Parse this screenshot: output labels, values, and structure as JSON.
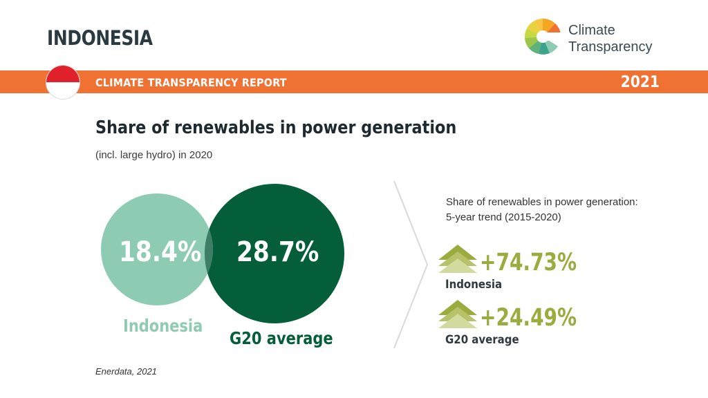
{
  "header": {
    "country": "INDONESIA",
    "logo_text_line1": "Climate",
    "logo_text_line2": "Transparency",
    "logo_icon": "climate-transparency-logo-icon",
    "flag_icon": "indonesia-flag-icon"
  },
  "banner": {
    "title": "CLIMATE TRANSPARENCY REPORT",
    "year": "2021",
    "color": "#f07233"
  },
  "chart": {
    "title": "Share of renewables in power generation",
    "subtitle": "(incl. large hydro) in 2020",
    "indonesia_value": "18.4%",
    "indonesia_label": "Indonesia",
    "g20_value": "28.7%",
    "g20_label": "G20 average",
    "colors": {
      "indonesia": "#8ecbb3",
      "g20": "#055e3a"
    }
  },
  "trend": {
    "title_line1": "Share of renewables in power generation:",
    "title_line2": "5-year trend (2015-2020)",
    "items": [
      {
        "value": "+74.73%",
        "label": "Indonesia",
        "icon": "up-arrow-icon"
      },
      {
        "value": "+24.49%",
        "label": "G20 average",
        "icon": "up-arrow-icon"
      }
    ],
    "color": "#9cab3e"
  },
  "source": "Enerdata, 2021"
}
